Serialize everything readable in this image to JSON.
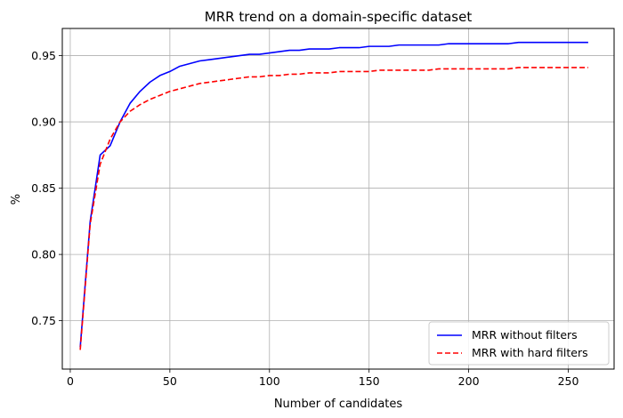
{
  "chart_data": {
    "type": "line",
    "title": "MRR trend on a domain-specific dataset",
    "xlabel": "Number of candidates",
    "ylabel": "%",
    "xlim": [
      -4,
      273
    ],
    "ylim": [
      0.7135,
      0.9705
    ],
    "xticks": [
      0,
      50,
      100,
      150,
      200,
      250
    ],
    "yticks": [
      0.75,
      0.8,
      0.85,
      0.9,
      0.95
    ],
    "ytick_labels": [
      "0.75",
      "0.80",
      "0.85",
      "0.90",
      "0.95"
    ],
    "grid": true,
    "legend_position": "lower-right",
    "series": [
      {
        "name": "MRR without filters",
        "color": "#0000ff",
        "style": "solid",
        "x": [
          5,
          10,
          15,
          20,
          25,
          30,
          35,
          40,
          45,
          50,
          55,
          60,
          65,
          70,
          75,
          80,
          85,
          90,
          95,
          100,
          105,
          110,
          115,
          120,
          125,
          130,
          135,
          140,
          145,
          150,
          155,
          160,
          165,
          170,
          175,
          180,
          185,
          190,
          195,
          200,
          205,
          210,
          215,
          220,
          225,
          230,
          235,
          240,
          245,
          250,
          255,
          260
        ],
        "y": [
          0.73,
          0.825,
          0.875,
          0.882,
          0.9,
          0.914,
          0.923,
          0.93,
          0.935,
          0.938,
          0.942,
          0.944,
          0.946,
          0.947,
          0.948,
          0.949,
          0.95,
          0.951,
          0.951,
          0.952,
          0.953,
          0.954,
          0.954,
          0.955,
          0.955,
          0.955,
          0.956,
          0.956,
          0.956,
          0.957,
          0.957,
          0.957,
          0.958,
          0.958,
          0.958,
          0.958,
          0.958,
          0.959,
          0.959,
          0.959,
          0.959,
          0.959,
          0.959,
          0.959,
          0.96,
          0.96,
          0.96,
          0.96,
          0.96,
          0.96,
          0.96,
          0.96
        ]
      },
      {
        "name": "MRR with hard filters",
        "color": "#ff0000",
        "style": "dashed",
        "x": [
          5,
          10,
          15,
          20,
          25,
          30,
          35,
          40,
          45,
          50,
          55,
          60,
          65,
          70,
          75,
          80,
          85,
          90,
          95,
          100,
          105,
          110,
          115,
          120,
          125,
          130,
          135,
          140,
          145,
          150,
          155,
          160,
          165,
          170,
          175,
          180,
          185,
          190,
          195,
          200,
          205,
          210,
          215,
          220,
          225,
          230,
          235,
          240,
          245,
          250,
          255,
          260
        ],
        "y": [
          0.728,
          0.823,
          0.868,
          0.887,
          0.9,
          0.908,
          0.913,
          0.917,
          0.92,
          0.923,
          0.925,
          0.927,
          0.929,
          0.93,
          0.931,
          0.932,
          0.933,
          0.934,
          0.934,
          0.935,
          0.935,
          0.936,
          0.936,
          0.937,
          0.937,
          0.937,
          0.938,
          0.938,
          0.938,
          0.938,
          0.939,
          0.939,
          0.939,
          0.939,
          0.939,
          0.939,
          0.94,
          0.94,
          0.94,
          0.94,
          0.94,
          0.94,
          0.94,
          0.94,
          0.941,
          0.941,
          0.941,
          0.941,
          0.941,
          0.941,
          0.941,
          0.941
        ]
      }
    ]
  }
}
